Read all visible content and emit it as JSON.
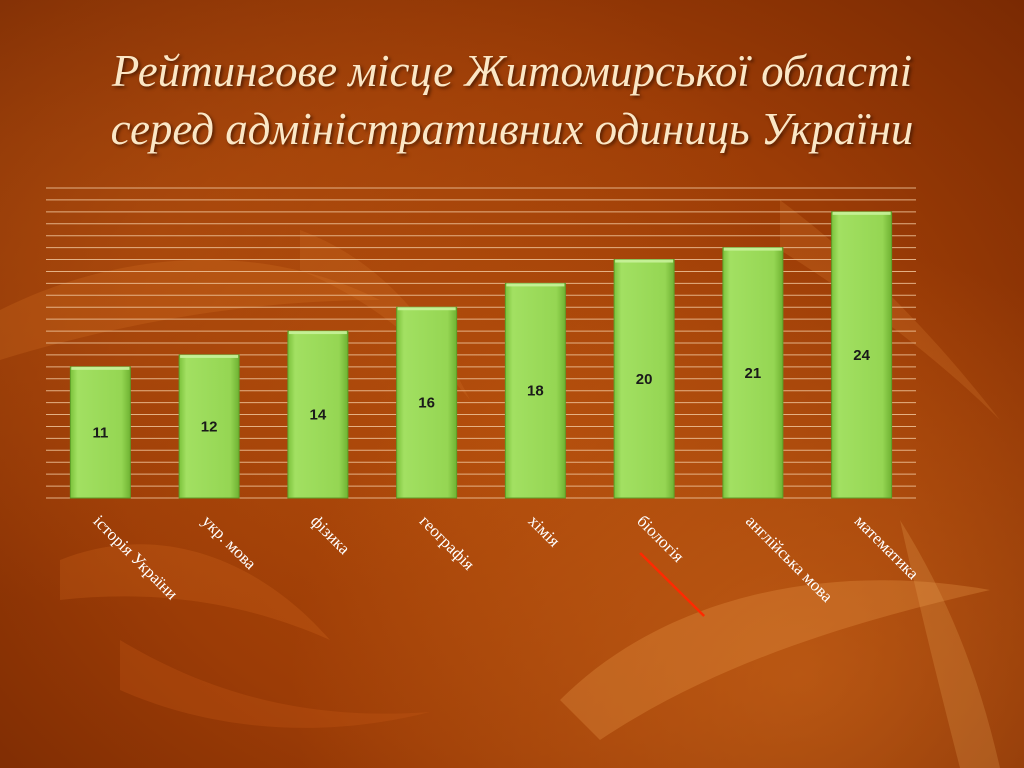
{
  "slide": {
    "title_lines": [
      "Рейтингове місце Житомирської області",
      "серед адміністративних одиниць України"
    ]
  },
  "colors": {
    "bar_fill": "#95d653",
    "gridline": "#f0c49a",
    "annotation_line": "#ff2a00",
    "title_text": "#fbe7c6",
    "category_text": "#ffffff"
  },
  "chart_data": {
    "type": "bar",
    "title": "",
    "xlabel": "",
    "ylabel": "",
    "categories": [
      "історія України",
      "укр. мова",
      "фізика",
      "географія",
      "хімія",
      "біологія",
      "англійська мова",
      "математика"
    ],
    "values": [
      11,
      12,
      14,
      16,
      18,
      20,
      21,
      24
    ],
    "ylim": [
      0,
      26
    ],
    "grid": true,
    "gridline_step": 1,
    "data_labels": true,
    "x_tick_rotation_deg": 45,
    "legend": "none"
  }
}
